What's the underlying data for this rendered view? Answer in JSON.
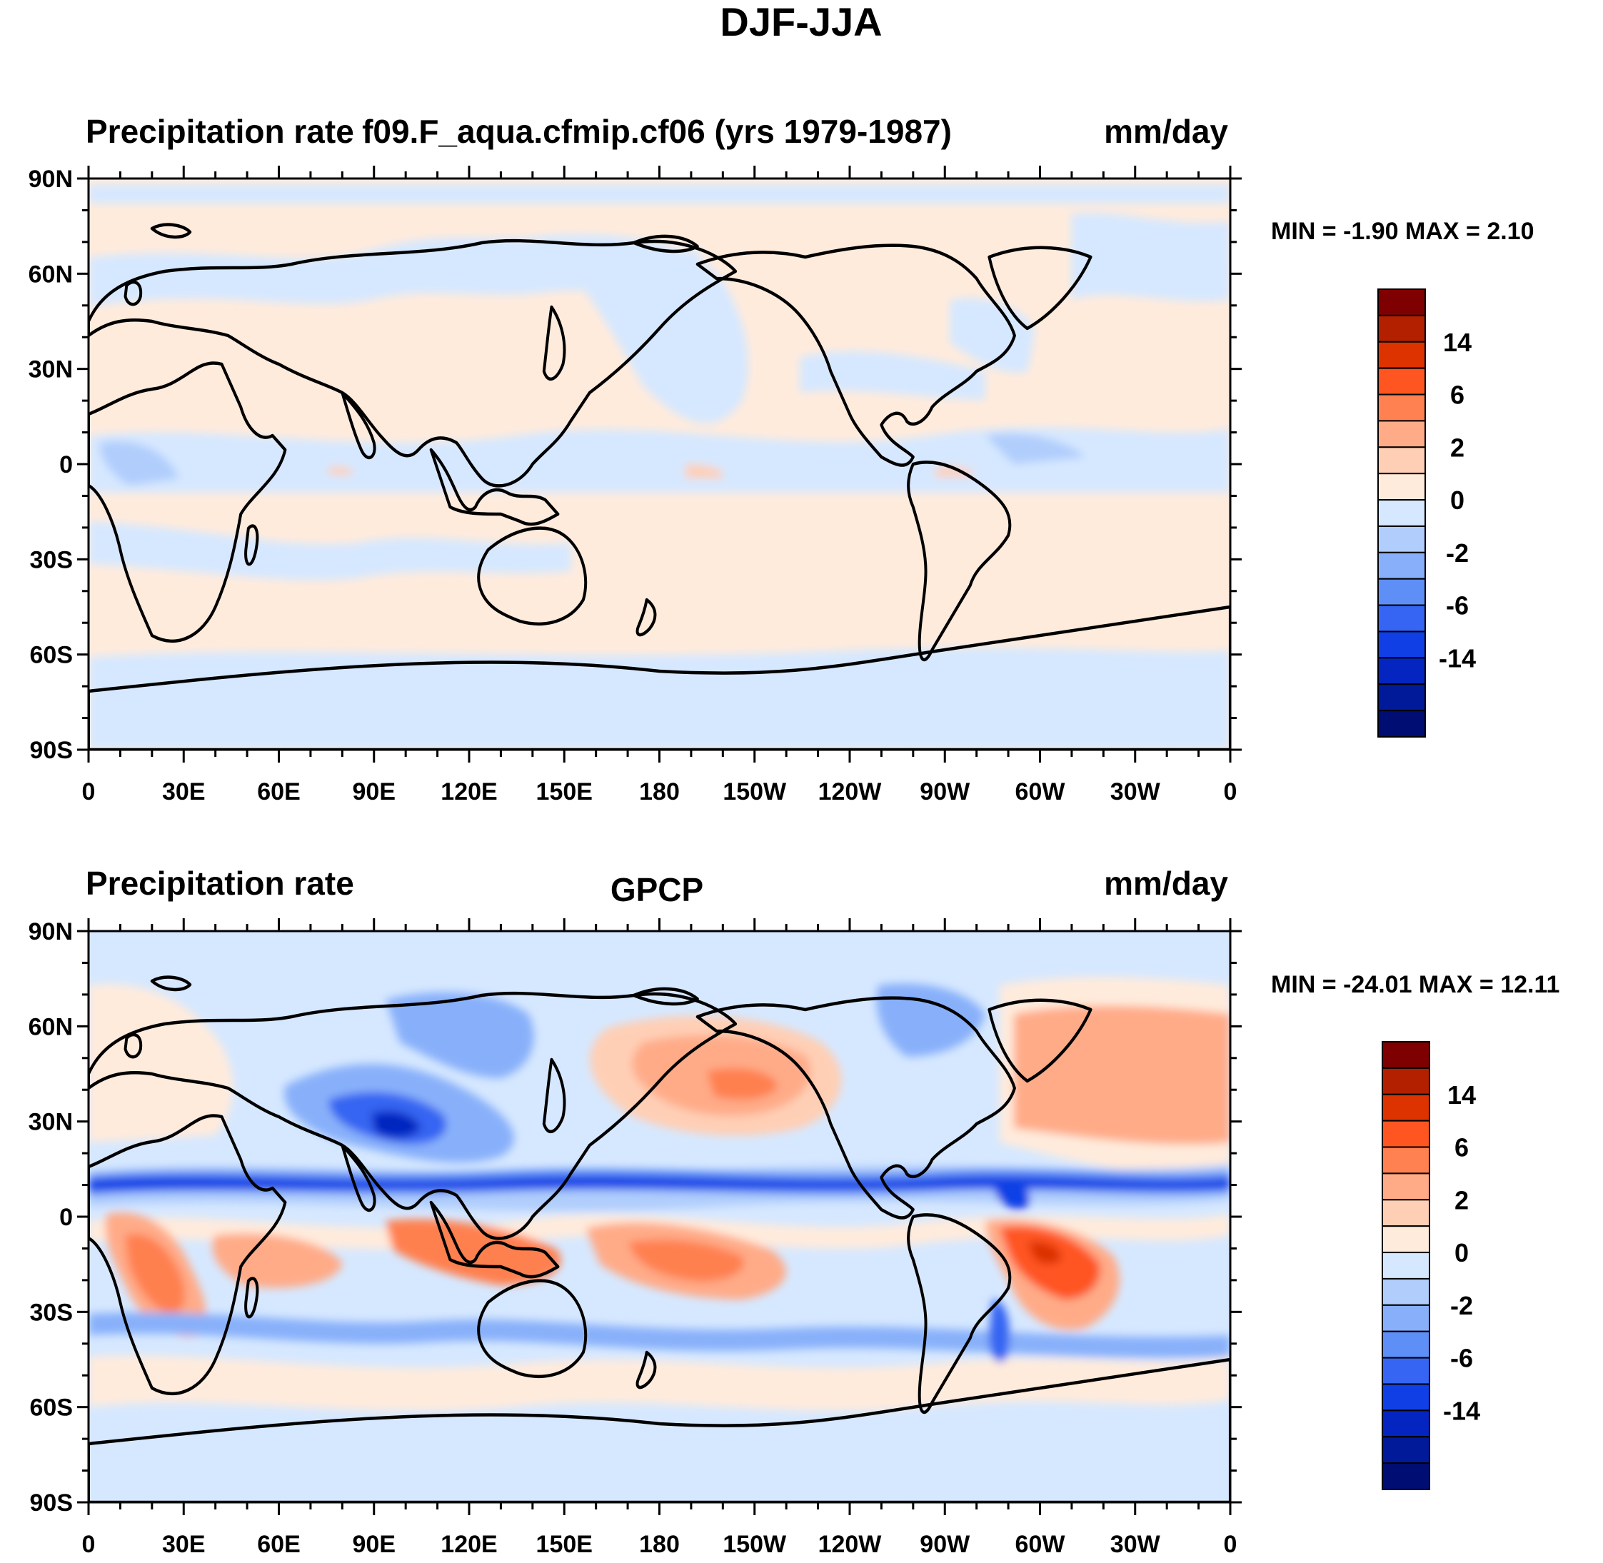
{
  "figure": {
    "main_title": "DJF-JJA"
  },
  "panels": [
    {
      "left_title": "Precipitation rate",
      "center_title": "f09.F_aqua.cfmip.cf06 (yrs 1979-1987)",
      "units": "mm/day",
      "stats": "MIN =  -1.90 MAX =   2.10",
      "min": -1.9,
      "max": 2.1
    },
    {
      "left_title": "Precipitation rate",
      "center_title": "GPCP",
      "units": "mm/day",
      "stats": "MIN = -24.01 MAX =  12.11",
      "min": -24.01,
      "max": 12.11
    }
  ],
  "axes": {
    "lat_labels": [
      "90N",
      "60N",
      "30N",
      "0",
      "30S",
      "60S",
      "90S"
    ],
    "lon_labels": [
      "0",
      "30E",
      "60E",
      "90E",
      "120E",
      "150E",
      "180",
      "150W",
      "120W",
      "90W",
      "60W",
      "30W",
      "0"
    ]
  },
  "colorbar": {
    "labels": [
      "14",
      "6",
      "2",
      "0",
      "-2",
      "-6",
      "-14"
    ],
    "colors": [
      "#7f0000",
      "#b22000",
      "#dc3300",
      "#ff5520",
      "#ff8050",
      "#ffab88",
      "#ffcfb5",
      "#ffebdc",
      "#d6e8ff",
      "#b0cdfc",
      "#88b0fa",
      "#5e8ff7",
      "#3565f2",
      "#1040e5",
      "#0525c0",
      "#001a99",
      "#000d73"
    ]
  },
  "colors": {
    "land_outline": "#000000",
    "pos_light": "#ffebdc",
    "neg_light": "#d6e8ff"
  }
}
